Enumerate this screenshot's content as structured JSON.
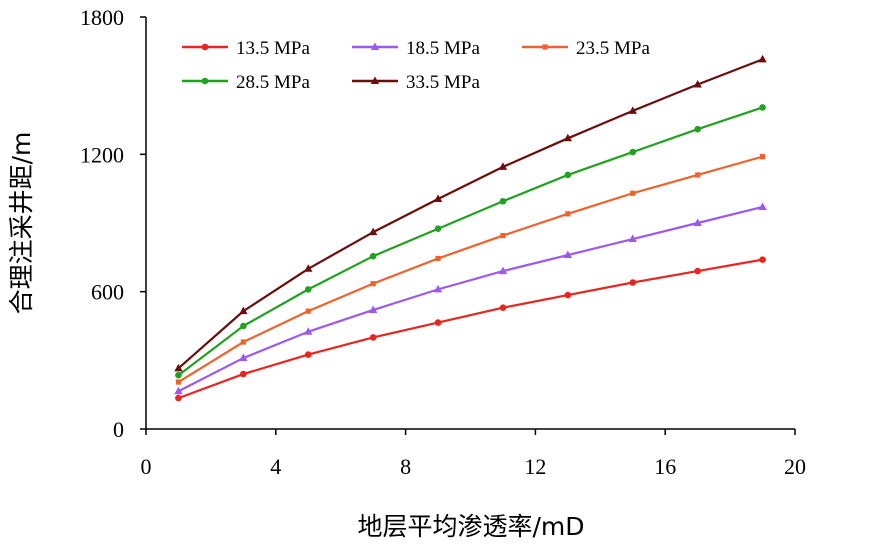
{
  "chart_data": {
    "type": "line",
    "title": "",
    "xlabel": "地层平均渗透率/mD",
    "ylabel": "合理注采井距/m",
    "xlim": [
      0,
      20
    ],
    "ylim": [
      0,
      1800
    ],
    "xticks": [
      "0",
      "4",
      "8",
      "12",
      "16",
      "20"
    ],
    "yticks": [
      "0",
      "600",
      "1200",
      "1800"
    ],
    "grid": false,
    "legend_position": "top-left",
    "x": [
      1,
      3,
      5,
      7,
      9,
      11,
      13,
      15,
      17,
      19
    ],
    "series": [
      {
        "name": "13.5 MPa",
        "color": "#e8251f",
        "marker": "circle",
        "values": [
          135,
          240,
          325,
          400,
          465,
          530,
          585,
          640,
          690,
          740
        ]
      },
      {
        "name": "18.5 MPa",
        "color": "#9b59f0",
        "marker": "triangle",
        "values": [
          165,
          310,
          425,
          520,
          610,
          690,
          760,
          830,
          900,
          970
        ]
      },
      {
        "name": "23.5 MPa",
        "color": "#f0622c",
        "marker": "square",
        "values": [
          205,
          380,
          515,
          635,
          745,
          845,
          940,
          1030,
          1110,
          1190
        ]
      },
      {
        "name": "28.5 MPa",
        "color": "#22a121",
        "marker": "circle",
        "values": [
          235,
          450,
          610,
          755,
          875,
          995,
          1110,
          1210,
          1310,
          1405
        ]
      },
      {
        "name": "33.5 MPa",
        "color": "#6b0d0d",
        "marker": "triangle",
        "values": [
          265,
          515,
          700,
          860,
          1005,
          1145,
          1270,
          1390,
          1505,
          1615
        ]
      }
    ]
  }
}
